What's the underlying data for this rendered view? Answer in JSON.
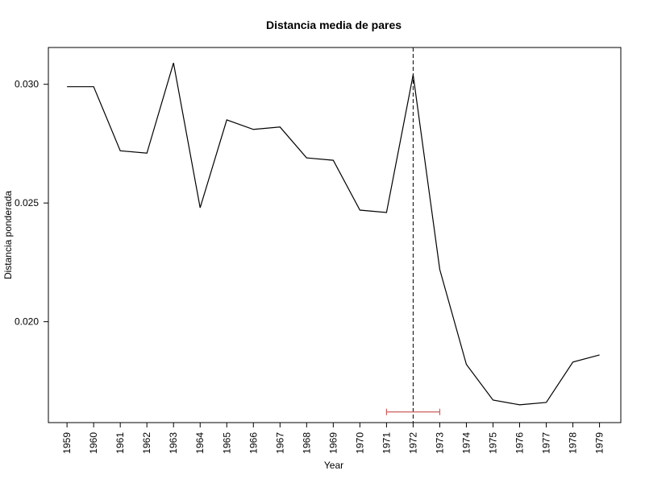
{
  "chart_data": {
    "type": "line",
    "title": "Distancia media de pares",
    "xlabel": "Year",
    "ylabel": "Distancia ponderada",
    "x": [
      1959,
      1960,
      1961,
      1962,
      1963,
      1964,
      1965,
      1966,
      1967,
      1968,
      1969,
      1970,
      1971,
      1972,
      1973,
      1974,
      1975,
      1976,
      1977,
      1978,
      1979
    ],
    "x_tick_labels": [
      "1959",
      "1960",
      "1961",
      "1962",
      "1963",
      "1964",
      "1965",
      "1966",
      "1967",
      "1968",
      "1969",
      "1970",
      "1971",
      "1972",
      "1973",
      "1974",
      "1975",
      "1976",
      "1977",
      "1978",
      "1979"
    ],
    "y_tick_values": [
      0.02,
      0.025,
      0.03
    ],
    "y_tick_labels": [
      "0.020",
      "0.025",
      "0.030"
    ],
    "series": [
      {
        "values": [
          0.0299,
          0.0299,
          0.0272,
          0.0271,
          0.0309,
          0.0248,
          0.0285,
          0.0281,
          0.0282,
          0.0269,
          0.0268,
          0.0247,
          0.0246,
          0.0304,
          0.0222,
          0.0182,
          0.0167,
          0.0165,
          0.0166,
          0.0183,
          0.0186
        ],
        "color": "#000000"
      }
    ],
    "xlim": [
      1958.3,
      1979.8
    ],
    "ylim": [
      0.01575,
      0.03155
    ],
    "vertical_reference_line": {
      "x": 1972,
      "style": "dashed",
      "color": "#000000"
    },
    "interval_bar": {
      "x_start": 1971,
      "x_end": 1973,
      "y": 0.0162,
      "color": "#cd5c5c"
    },
    "grid": false,
    "legend": "none"
  }
}
